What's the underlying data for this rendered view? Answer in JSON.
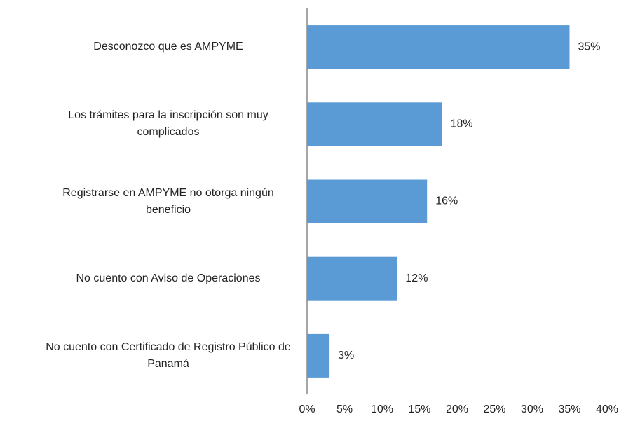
{
  "chart_data": {
    "type": "barh",
    "categories": [
      "Desconozco que es AMPYME",
      "Los trámites para la inscripción son muy complicados",
      "Registrarse en AMPYME no otorga ningún beneficio",
      "No cuento con Aviso de Operaciones",
      "No cuento con Certificado de Registro Público de Panamá"
    ],
    "values": [
      35,
      18,
      16,
      12,
      3
    ],
    "value_labels": [
      "35%",
      "18%",
      "16%",
      "12%",
      "3%"
    ],
    "color": "#5b9bd5",
    "xlim": [
      0,
      40
    ],
    "xticks": [
      {
        "value": 0,
        "label": "0%"
      },
      {
        "value": 5,
        "label": "5%"
      },
      {
        "value": 10,
        "label": "10%"
      },
      {
        "value": 15,
        "label": "15%"
      },
      {
        "value": 20,
        "label": "20%"
      },
      {
        "value": 25,
        "label": "25%"
      },
      {
        "value": 30,
        "label": "30%"
      },
      {
        "value": 35,
        "label": "35%"
      },
      {
        "value": 40,
        "label": "40%"
      }
    ],
    "grid": false
  }
}
